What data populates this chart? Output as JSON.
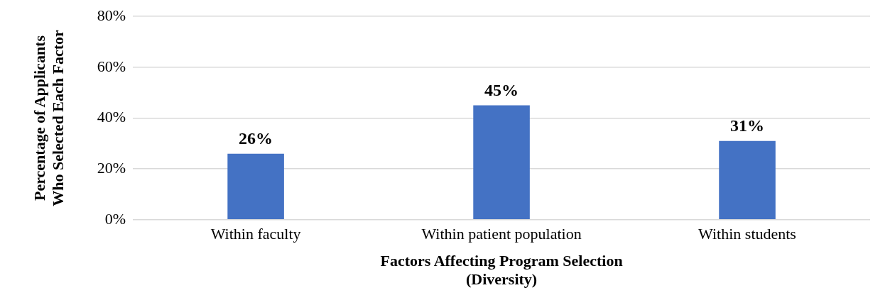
{
  "chart_data": {
    "type": "bar",
    "xlabel": "Factors Affecting Program Selection\n(Diversity)",
    "ylabel": "Percentage of Applicants\nWho Selected Each Factor",
    "categories": [
      "Within faculty",
      "Within patient population",
      "Within students"
    ],
    "values": [
      26,
      45,
      31
    ],
    "color": "#4472c4",
    "value_labels": [
      "26%",
      "45%",
      "31%"
    ],
    "ylim": [
      0,
      80
    ],
    "yticks": [
      {
        "value": 0,
        "label": "0%"
      },
      {
        "value": 20,
        "label": "20%"
      },
      {
        "value": 40,
        "label": "40%"
      },
      {
        "value": 60,
        "label": "60%"
      },
      {
        "value": 80,
        "label": "80%"
      }
    ],
    "grid": "y",
    "legend": false
  }
}
